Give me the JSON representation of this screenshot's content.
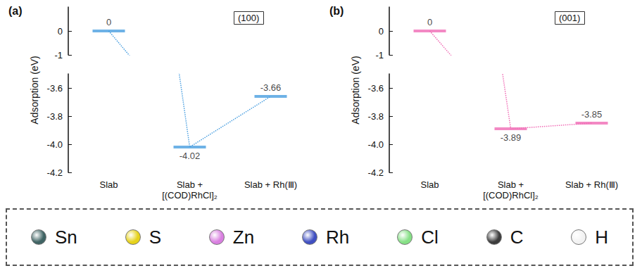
{
  "chart_data": [
    {
      "type": "energy_levels",
      "title": "(a)",
      "annotation": "(100)",
      "y_label": "Adsorption (eV)",
      "categories": [
        "Slab",
        "Slab +\n[(COD)RhCl]₂",
        "Slab + Rh(Ⅲ)"
      ],
      "values": [
        0,
        -4.02,
        -3.66
      ],
      "color": "#4a9fe0",
      "ylim": [
        [
          -4.2,
          -3.5
        ],
        [
          -1,
          1
        ]
      ],
      "yticks": [
        0,
        -1,
        -3.6,
        -3.8,
        {
          "value": -4,
          "label": "-4.0"
        },
        -4.2
      ],
      "data_labels": true,
      "line_style": "dotted",
      "grid": false
    },
    {
      "type": "energy_levels",
      "title": "(b)",
      "annotation": "(001)",
      "y_label": "Adsorption (eV)",
      "categories": [
        "Slab",
        "Slab +\n[(COD)RhCl]₂",
        "Slab + Rh(Ⅲ)"
      ],
      "values": [
        0,
        -3.89,
        -3.85
      ],
      "color": "#f06cb5",
      "ylim": [
        [
          -4.2,
          -3.5
        ],
        [
          -1,
          1
        ]
      ],
      "yticks": [
        0,
        -1,
        -3.6,
        -3.8,
        {
          "value": -4,
          "label": "-4.0"
        },
        -4.2
      ],
      "data_labels": true,
      "line_style": "dotted",
      "grid": false
    }
  ],
  "atom_key": {
    "items": [
      {
        "label": "Sn",
        "color": "#3f6464"
      },
      {
        "label": "S",
        "color": "#e6d21a"
      },
      {
        "label": "Zn",
        "color": "#d97fe0"
      },
      {
        "label": "Rh",
        "color": "#3f4fc2"
      },
      {
        "label": "Cl",
        "color": "#86e086"
      },
      {
        "label": "C",
        "color": "#3c3c3c"
      },
      {
        "label": "H",
        "color": "#f2f2f2"
      }
    ]
  }
}
